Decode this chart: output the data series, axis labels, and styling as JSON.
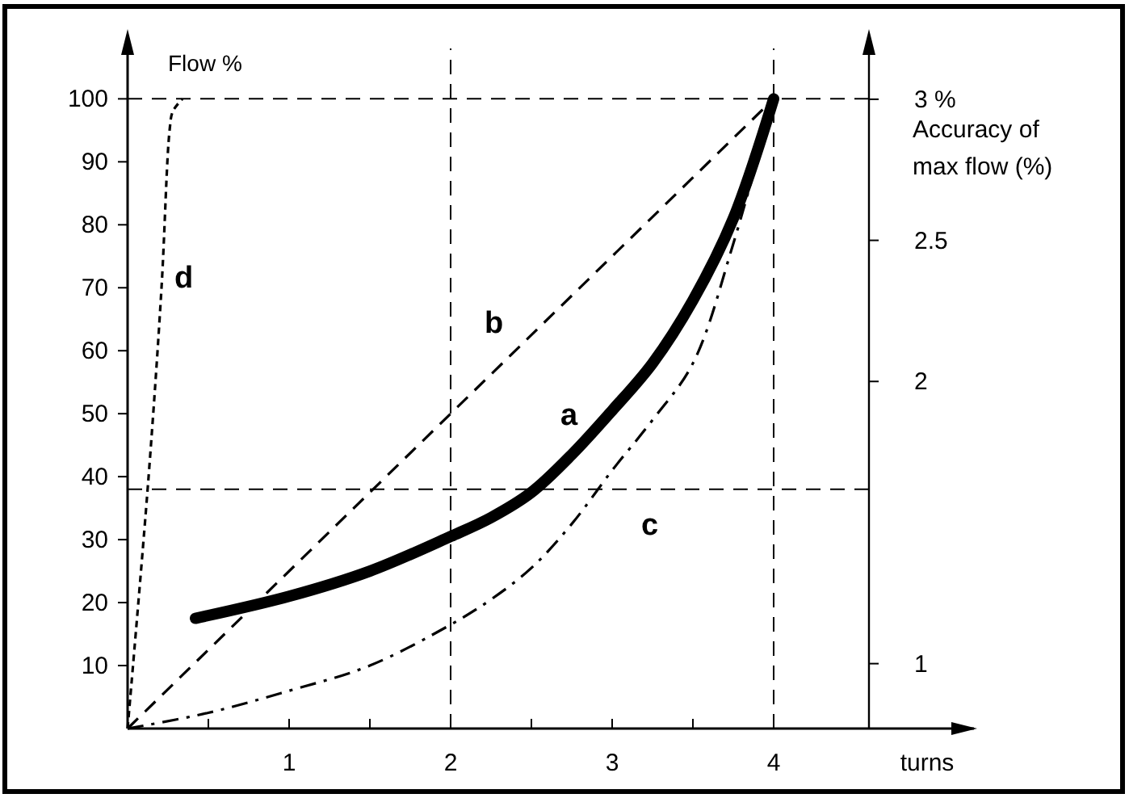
{
  "chart_data": {
    "type": "line",
    "xlabel": "turns",
    "ylabel": "Flow %",
    "y2label": "Accuracy of max flow (%)",
    "xlim": [
      0,
      5.24
    ],
    "xticks": [
      {
        "value": 0.5,
        "label": null
      },
      1,
      {
        "value": 1.5,
        "label": null
      },
      2,
      {
        "value": 2.5,
        "label": null
      },
      3,
      {
        "value": 3.5,
        "label": null
      },
      4
    ],
    "ylim": [
      0,
      108
    ],
    "yticks": [
      10,
      20,
      30,
      40,
      50,
      60,
      70,
      80,
      90,
      100
    ],
    "y2lim": [
      0.77,
      3.18
    ],
    "y2ticks": [
      1,
      2,
      2.5,
      {
        "value": 3,
        "label": "3 %"
      }
    ],
    "grid": false,
    "legend": false,
    "marker": "none",
    "series": [
      {
        "name": "a",
        "color": "#000000",
        "line_style": "solid",
        "x": [
          0.42,
          1,
          1.5,
          2,
          2.25,
          2.5,
          2.75,
          3,
          3.25,
          3.5,
          3.75,
          4
        ],
        "values": [
          17.5,
          21,
          25,
          30.5,
          33.5,
          37.5,
          43.5,
          50.5,
          58,
          68,
          81,
          100
        ]
      },
      {
        "name": "b",
        "color": "#000000",
        "line_style": "dashed",
        "x": [
          0,
          4
        ],
        "values": [
          0,
          100
        ]
      },
      {
        "name": "c",
        "color": "#000000",
        "line_style": "dashdot",
        "x": [
          0,
          0.5,
          1,
          1.5,
          2,
          2.25,
          2.5,
          2.75,
          3,
          3.25,
          3.5,
          3.75,
          4
        ],
        "values": [
          0,
          2.5,
          6,
          10,
          16.5,
          20.5,
          25.5,
          32.5,
          41,
          49,
          58,
          77,
          100
        ]
      },
      {
        "name": "d",
        "color": "#000000",
        "line_style": "dotted",
        "x": [
          0,
          0.13,
          0.21,
          0.26,
          0.28,
          0.34
        ],
        "values": [
          0,
          40,
          70,
          95,
          98,
          100
        ]
      }
    ],
    "ref_lines": [
      {
        "axis": "y",
        "value": 100,
        "line_style": "dashed"
      },
      {
        "axis": "y",
        "value": 38,
        "line_style": "dashed"
      },
      {
        "axis": "x",
        "value": 2,
        "line_style": "dashed"
      },
      {
        "axis": "x",
        "value": 4,
        "line_style": "dashed"
      }
    ]
  }
}
